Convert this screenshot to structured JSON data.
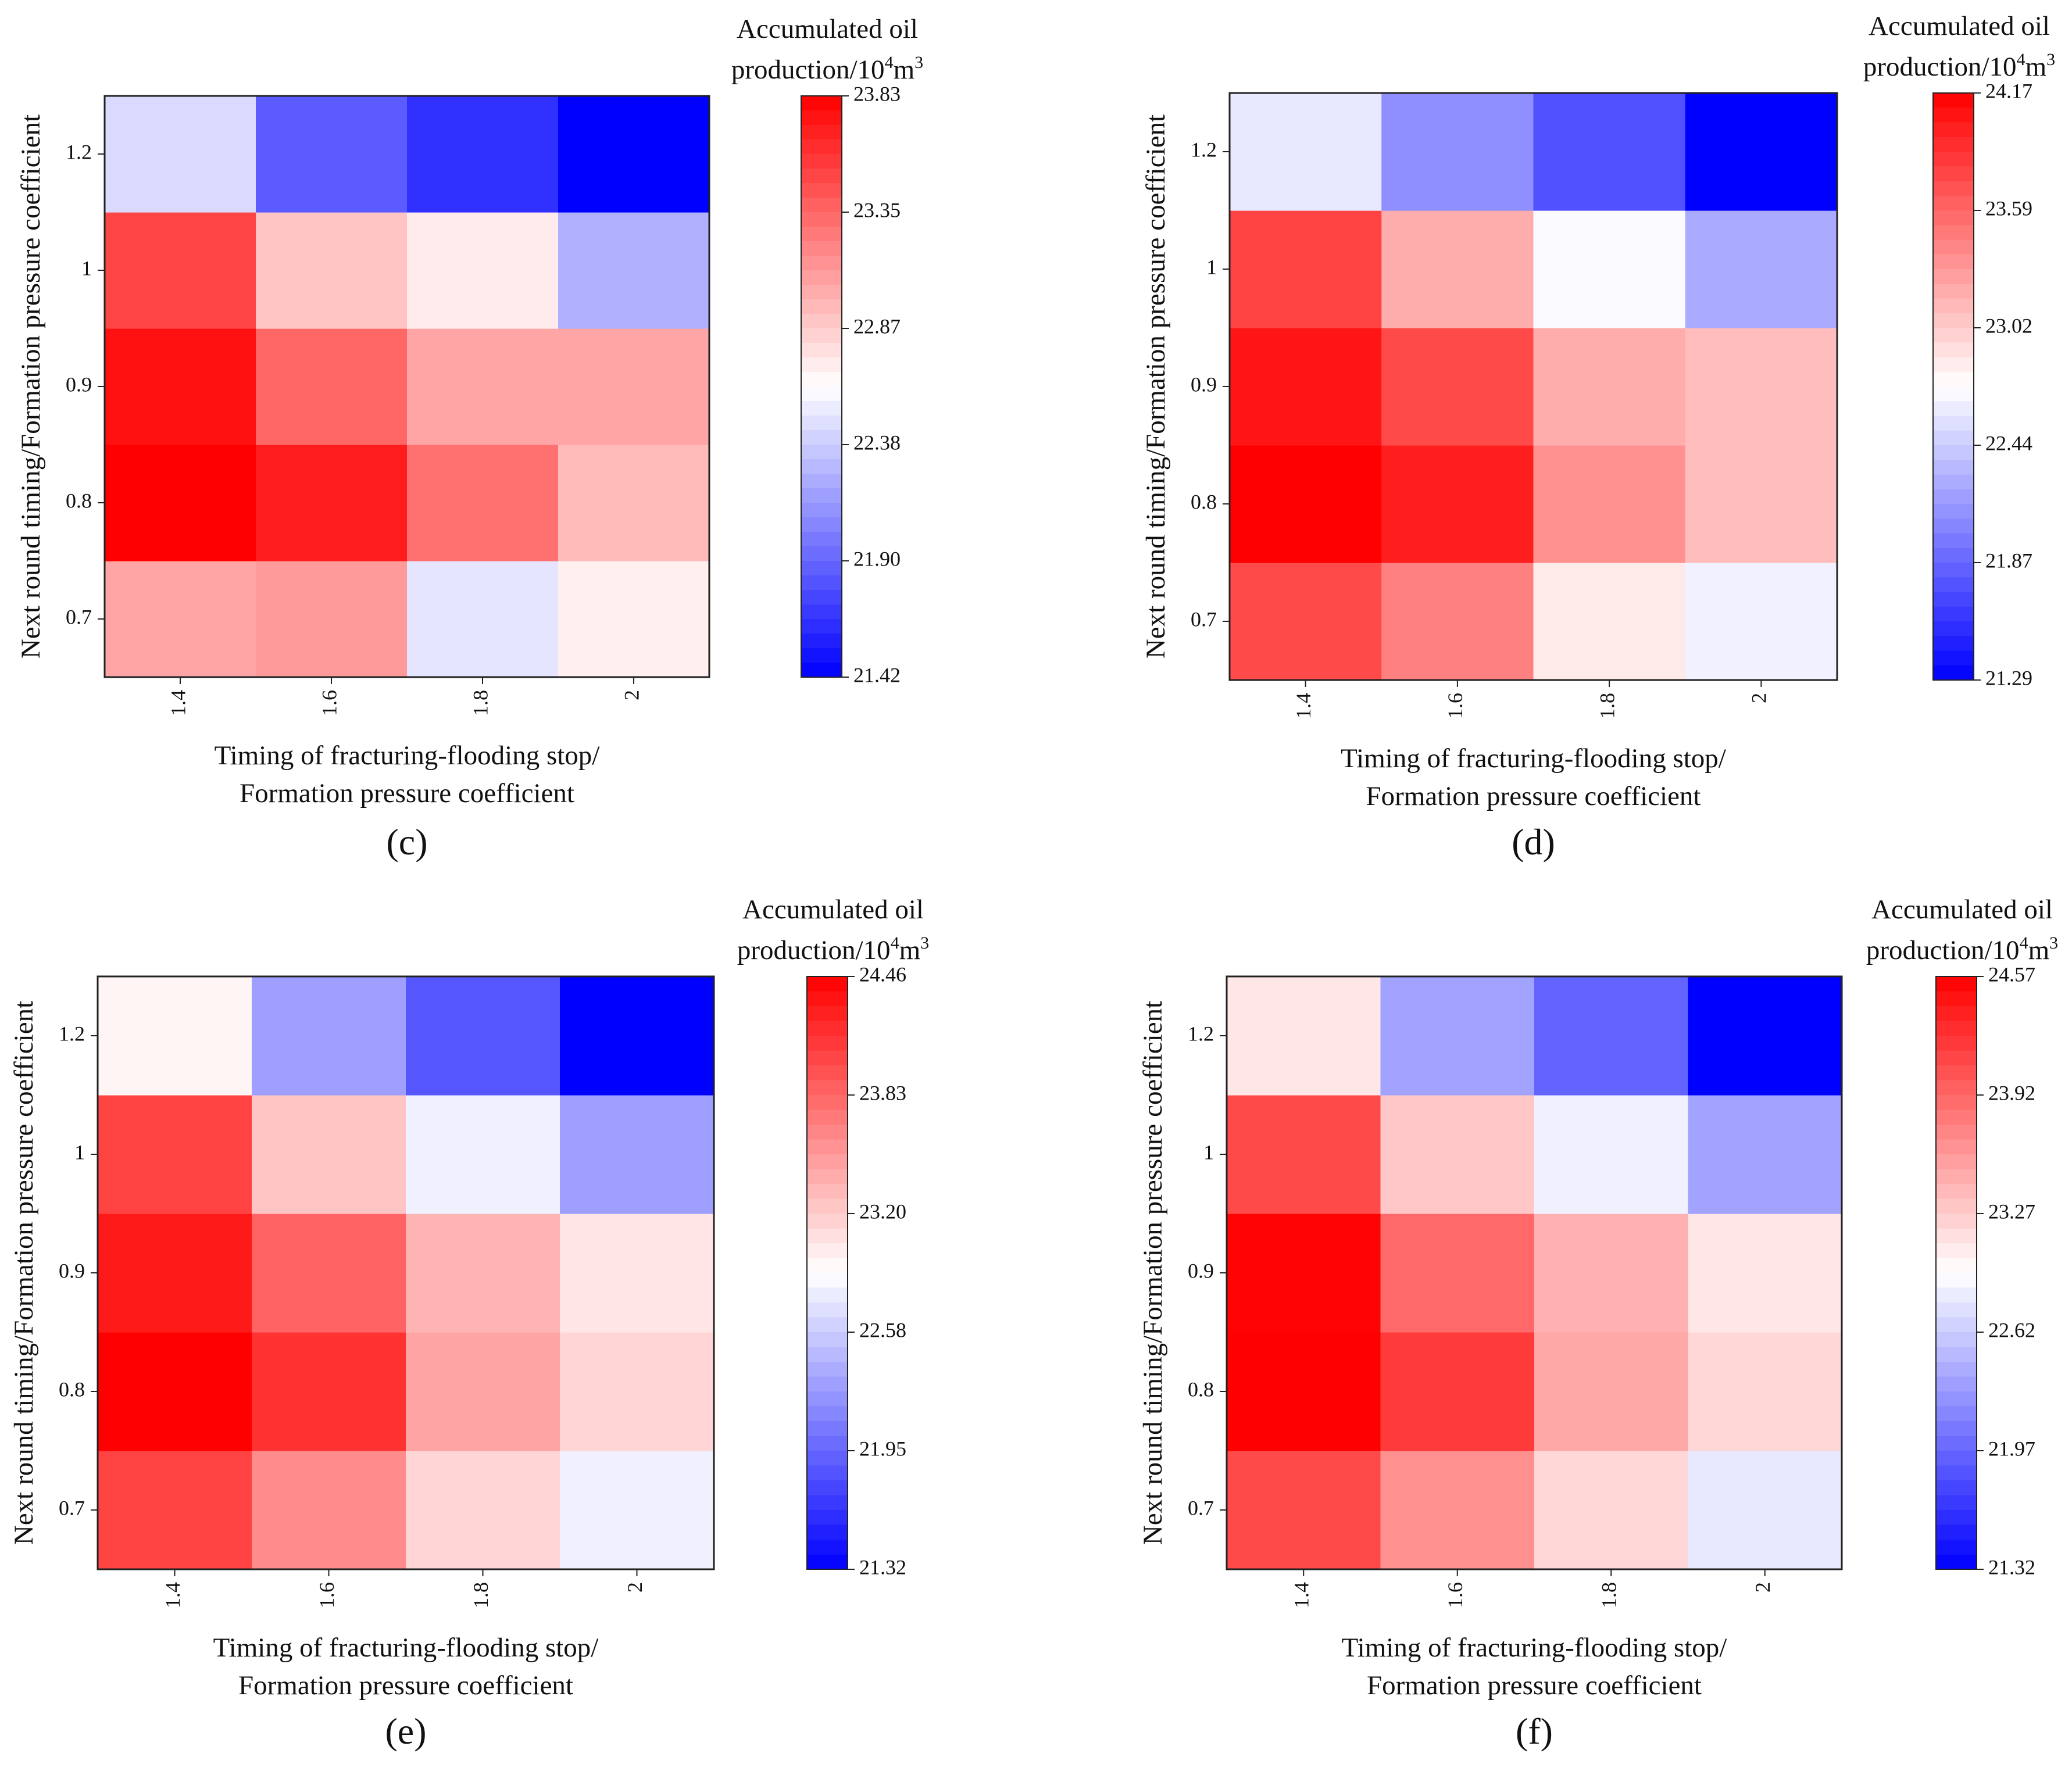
{
  "chart_data": [
    {
      "type": "heatmap",
      "panel_label": "(c)",
      "x_categories": [
        "1.4",
        "1.6",
        "1.8",
        "2"
      ],
      "y_categories": [
        "0.7",
        "0.8",
        "0.9",
        "1",
        "1.2"
      ],
      "xlabel_line1": "Timing of fracturing-flooding stop/",
      "xlabel_line2": "Formation pressure coefficient",
      "ylabel": "Next round timing/Formation pressure coefficient",
      "colorbar_title_line1": "Accumulated oil",
      "colorbar_title_line2": "production/10",
      "colorbar_title_sup1": "4",
      "colorbar_title_mid": "m",
      "colorbar_title_sup2": "3",
      "colorbar_ticks": [
        "23.83",
        "23.35",
        "22.87",
        "22.38",
        "21.90",
        "21.42"
      ],
      "vmin": 21.42,
      "vmax": 23.83,
      "values": [
        [
          23.05,
          23.1,
          22.5,
          22.7
        ],
        [
          23.83,
          23.7,
          23.3,
          22.95
        ],
        [
          23.75,
          23.35,
          23.05,
          23.05
        ],
        [
          23.5,
          22.9,
          22.72,
          22.25
        ],
        [
          22.45,
          21.85,
          21.65,
          21.42
        ]
      ]
    },
    {
      "type": "heatmap",
      "panel_label": "(d)",
      "x_categories": [
        "1.4",
        "1.6",
        "1.8",
        "2"
      ],
      "y_categories": [
        "0.7",
        "0.8",
        "0.9",
        "1",
        "1.2"
      ],
      "xlabel_line1": "Timing of fracturing-flooding stop/",
      "xlabel_line2": "Formation pressure coefficient",
      "ylabel": "Next round timing/Formation pressure coefficient",
      "colorbar_title_line1": "Accumulated oil",
      "colorbar_title_line2": "production/10",
      "colorbar_title_sup1": "4",
      "colorbar_title_mid": "m",
      "colorbar_title_sup2": "3",
      "colorbar_ticks": [
        "24.17",
        "23.59",
        "23.02",
        "22.44",
        "21.87",
        "21.29"
      ],
      "vmin": 21.29,
      "vmax": 24.17,
      "values": [
        [
          23.75,
          23.45,
          22.85,
          22.65
        ],
        [
          24.17,
          24.0,
          23.35,
          23.1
        ],
        [
          24.05,
          23.75,
          23.2,
          23.1
        ],
        [
          23.8,
          23.2,
          22.7,
          22.25
        ],
        [
          22.6,
          22.1,
          21.75,
          21.29
        ]
      ]
    },
    {
      "type": "heatmap",
      "panel_label": "(e)",
      "x_categories": [
        "1.4",
        "1.6",
        "1.8",
        "2"
      ],
      "y_categories": [
        "0.7",
        "0.8",
        "0.9",
        "1",
        "1.2"
      ],
      "xlabel_line1": "Timing of fracturing-flooding stop/",
      "xlabel_line2": "Formation pressure coefficient",
      "ylabel": "Next round timing/Formation pressure coefficient",
      "colorbar_title_line1": "Accumulated oil",
      "colorbar_title_line2": "production/10",
      "colorbar_title_sup1": "4",
      "colorbar_title_mid": "m",
      "colorbar_title_sup2": "3",
      "colorbar_ticks": [
        "24.46",
        "23.83",
        "23.20",
        "22.58",
        "21.95",
        "21.32"
      ],
      "vmin": 21.32,
      "vmax": 24.46,
      "values": [
        [
          24.05,
          23.6,
          23.15,
          22.8
        ],
        [
          24.46,
          24.15,
          23.45,
          23.15
        ],
        [
          24.3,
          23.85,
          23.35,
          23.05
        ],
        [
          24.05,
          23.25,
          22.8,
          22.3
        ],
        [
          22.95,
          22.3,
          21.85,
          21.32
        ]
      ]
    },
    {
      "type": "heatmap",
      "panel_label": "(f)",
      "x_categories": [
        "1.4",
        "1.6",
        "1.8",
        "2"
      ],
      "y_categories": [
        "0.7",
        "0.8",
        "0.9",
        "1",
        "1.2"
      ],
      "xlabel_line1": "Timing of fracturing-flooding stop/",
      "xlabel_line2": "Formation pressure coefficient",
      "ylabel": "Next round timing/Formation pressure coefficient",
      "colorbar_title_line1": "Accumulated oil",
      "colorbar_title_line2": "production/10",
      "colorbar_title_sup1": "4",
      "colorbar_title_mid": "m",
      "colorbar_title_sup2": "3",
      "colorbar_ticks": [
        "24.57",
        "23.92",
        "23.27",
        "22.62",
        "21.97",
        "21.32"
      ],
      "vmin": 21.32,
      "vmax": 24.57,
      "values": [
        [
          24.1,
          23.65,
          23.2,
          22.8
        ],
        [
          24.57,
          24.2,
          23.5,
          23.2
        ],
        [
          24.55,
          23.9,
          23.45,
          23.1
        ],
        [
          24.1,
          23.3,
          22.85,
          22.35
        ],
        [
          23.1,
          22.35,
          21.95,
          21.32
        ]
      ]
    }
  ],
  "colors": {
    "low": "#0000ff",
    "mid": "#ffffff",
    "high": "#ff0000",
    "text": "#111111",
    "frame": "#222222"
  }
}
